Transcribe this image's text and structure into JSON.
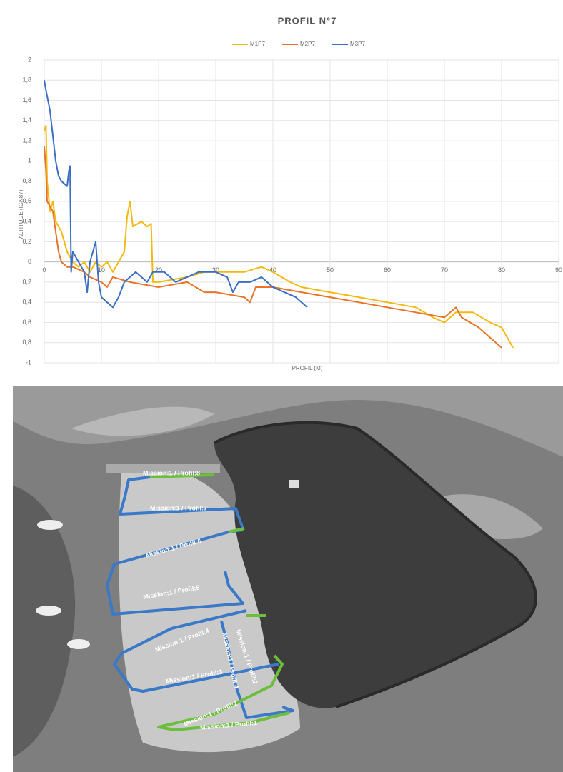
{
  "chart_data": {
    "type": "line",
    "title": "PROFIL N°7",
    "x_label": "PROFIL (M)",
    "y_label": "ALTITUDE (IGN87)",
    "xlim": [
      0,
      90
    ],
    "xticks": [
      0,
      10,
      20,
      30,
      40,
      50,
      60,
      70,
      80,
      90
    ],
    "ylim": [
      -1,
      2
    ],
    "yticks": [
      {
        "value": -1,
        "label": "-1"
      },
      {
        "value": -0.8,
        "label": "0,8"
      },
      {
        "value": -0.6,
        "label": "0,6"
      },
      {
        "value": -0.4,
        "label": "0,4"
      },
      {
        "value": -0.2,
        "label": "0,2"
      },
      0,
      {
        "value": 0.2,
        "label": "0,2"
      },
      {
        "value": 0.4,
        "label": "0,4"
      },
      {
        "value": 0.6,
        "label": "0,6"
      },
      {
        "value": 0.8,
        "label": "0,8"
      },
      1,
      {
        "value": 1.2,
        "label": "1,2"
      },
      {
        "value": 1.4,
        "label": "1,4"
      },
      {
        "value": 1.6,
        "label": "1,6"
      },
      {
        "value": 1.8,
        "label": "1,8"
      },
      2
    ],
    "grid": true,
    "series": [
      {
        "name": "M1P7",
        "color": "#f2b90f",
        "x": [
          0,
          0.3,
          0.5,
          1,
          1.5,
          2,
          3,
          4,
          5,
          6,
          7,
          8,
          9,
          10,
          11,
          12,
          13,
          14,
          14.5,
          15,
          15.5,
          17,
          18,
          18.7,
          19,
          20,
          25,
          28,
          30,
          35,
          38,
          40,
          43,
          45,
          50,
          55,
          60,
          65,
          68,
          70,
          72,
          75,
          78,
          80,
          82
        ],
        "values": [
          1.3,
          1.35,
          0.8,
          0.5,
          0.6,
          0.4,
          0.3,
          0.1,
          0,
          -0.05,
          0,
          -0.1,
          0,
          -0.05,
          0,
          -0.1,
          0,
          0.1,
          0.45,
          0.6,
          0.35,
          0.4,
          0.35,
          0.38,
          -0.2,
          -0.2,
          -0.15,
          -0.1,
          -0.1,
          -0.1,
          -0.05,
          -0.1,
          -0.2,
          -0.25,
          -0.3,
          -0.35,
          -0.4,
          -0.45,
          -0.55,
          -0.6,
          -0.5,
          -0.5,
          -0.6,
          -0.65,
          -0.85
        ]
      },
      {
        "name": "M2P7",
        "color": "#e8742a",
        "x": [
          0,
          0.3,
          0.5,
          1,
          1.5,
          2,
          2.5,
          3,
          4,
          5,
          7,
          8,
          10,
          11,
          12,
          15,
          20,
          25,
          28,
          30,
          35,
          36,
          37,
          40,
          45,
          50,
          55,
          60,
          65,
          70,
          72,
          73,
          76,
          78,
          80
        ],
        "values": [
          1.15,
          0.9,
          0.6,
          0.55,
          0.5,
          0.3,
          0.1,
          0,
          -0.05,
          -0.05,
          -0.1,
          -0.15,
          -0.2,
          -0.25,
          -0.15,
          -0.2,
          -0.25,
          -0.2,
          -0.3,
          -0.3,
          -0.35,
          -0.4,
          -0.25,
          -0.25,
          -0.3,
          -0.35,
          -0.4,
          -0.45,
          -0.5,
          -0.55,
          -0.45,
          -0.55,
          -0.65,
          -0.75,
          -0.85
        ]
      },
      {
        "name": "M3P7",
        "color": "#3a6fc4",
        "x": [
          0,
          0.3,
          1,
          2,
          2.5,
          3,
          4,
          4.3,
          4.5,
          4.7,
          5,
          6,
          7,
          7.5,
          8,
          9,
          9.5,
          10,
          11,
          12,
          13,
          14,
          15,
          16,
          17,
          18,
          19,
          20,
          21,
          23,
          25,
          27,
          30,
          32,
          33,
          34,
          36,
          38,
          40,
          42,
          44,
          46
        ],
        "values": [
          1.8,
          1.7,
          1.5,
          1,
          0.85,
          0.8,
          0.75,
          0.9,
          0.95,
          -0.1,
          0.1,
          0,
          -0.1,
          -0.3,
          0,
          0.2,
          -0.2,
          -0.35,
          -0.4,
          -0.45,
          -0.35,
          -0.2,
          -0.15,
          -0.1,
          -0.15,
          -0.2,
          -0.1,
          -0.1,
          -0.1,
          -0.2,
          -0.15,
          -0.1,
          -0.1,
          -0.15,
          -0.3,
          -0.2,
          -0.2,
          -0.15,
          -0.25,
          -0.3,
          -0.35,
          -0.45
        ]
      }
    ]
  },
  "photo": {
    "labels": [
      "Mission:1 / Profil:8",
      "Mission:1 / Profil:7",
      "Mission:1 / Profil:6",
      "Mission:1 / Profil:5",
      "Mission:1 / Profil:4",
      "Mission:1 / Profil:3",
      "Mission:1 / Profil:4",
      "Mission:1 / Profil:2",
      "Mission:1 / Profil:2",
      "Mission:1 / Profil:1"
    ]
  }
}
